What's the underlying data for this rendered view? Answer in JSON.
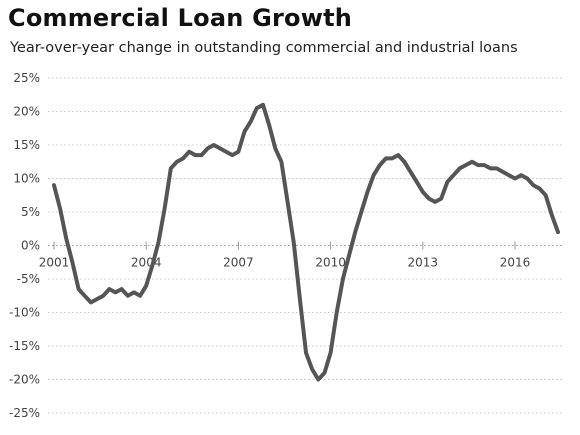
{
  "chart_data": {
    "type": "line",
    "title": "Commercial Loan Growth",
    "subtitle": "Year-over-year change in outstanding commercial and industrial loans",
    "xlabel": "",
    "ylabel": "",
    "xlim": [
      2001.0,
      2017.4
    ],
    "ylim": [
      -25,
      25
    ],
    "x_ticks": [
      2001,
      2004,
      2007,
      2010,
      2013,
      2016
    ],
    "x_tick_labels": [
      "2001",
      "2004",
      "2007",
      "2010",
      "2013",
      "2016"
    ],
    "y_ticks": [
      25,
      20,
      15,
      10,
      5,
      0,
      -5,
      -10,
      -15,
      -20,
      -25
    ],
    "y_tick_labels": [
      "25%",
      "20%",
      "15%",
      "10%",
      "5%",
      "0%",
      "-5%",
      "-10%",
      "-15%",
      "-20%",
      "-25%"
    ],
    "grid": {
      "horizontal": true,
      "vertical": false,
      "style": "dotted"
    },
    "legend": "none",
    "line_color": "#555555",
    "series": [
      {
        "x": [
          2001.0,
          2001.2,
          2001.4,
          2001.6,
          2001.8,
          2002.0,
          2002.2,
          2002.4,
          2002.6,
          2002.8,
          2003.0,
          2003.2,
          2003.4,
          2003.6,
          2003.8,
          2004.0,
          2004.2,
          2004.4,
          2004.6,
          2004.8,
          2005.0,
          2005.2,
          2005.4,
          2005.6,
          2005.8,
          2006.0,
          2006.2,
          2006.4,
          2006.6,
          2006.8,
          2007.0,
          2007.2,
          2007.4,
          2007.6,
          2007.8,
          2008.0,
          2008.2,
          2008.4,
          2008.6,
          2008.8,
          2009.0,
          2009.2,
          2009.4,
          2009.6,
          2009.8,
          2010.0,
          2010.2,
          2010.4,
          2010.6,
          2010.8,
          2011.0,
          2011.2,
          2011.4,
          2011.6,
          2011.8,
          2012.0,
          2012.2,
          2012.4,
          2012.6,
          2012.8,
          2013.0,
          2013.2,
          2013.4,
          2013.6,
          2013.8,
          2014.0,
          2014.2,
          2014.4,
          2014.6,
          2014.8,
          2015.0,
          2015.2,
          2015.4,
          2015.6,
          2015.8,
          2016.0,
          2016.2,
          2016.4,
          2016.6,
          2016.8,
          2017.0,
          2017.2,
          2017.4
        ],
        "y": [
          9.0,
          5.5,
          1.0,
          -2.5,
          -6.5,
          -7.5,
          -8.5,
          -8.0,
          -7.5,
          -6.5,
          -7.0,
          -6.5,
          -7.5,
          -7.0,
          -7.5,
          -6.0,
          -3.0,
          0.5,
          5.5,
          11.5,
          12.5,
          13.0,
          14.0,
          13.5,
          13.5,
          14.5,
          15.0,
          14.5,
          14.0,
          13.5,
          14.0,
          17.0,
          18.5,
          20.5,
          21.0,
          18.0,
          14.5,
          12.5,
          6.5,
          0.5,
          -8.0,
          -16.0,
          -18.5,
          -20.0,
          -19.0,
          -16.0,
          -10.0,
          -5.0,
          -1.5,
          2.0,
          5.0,
          8.0,
          10.5,
          12.0,
          13.0,
          13.0,
          13.5,
          12.5,
          11.0,
          9.5,
          8.0,
          7.0,
          6.5,
          7.0,
          9.5,
          10.5,
          11.5,
          12.0,
          12.5,
          12.0,
          12.0,
          11.5,
          11.5,
          11.0,
          10.5,
          10.0,
          10.5,
          10.0,
          9.0,
          8.5,
          7.5,
          4.5,
          2.0
        ]
      }
    ]
  }
}
